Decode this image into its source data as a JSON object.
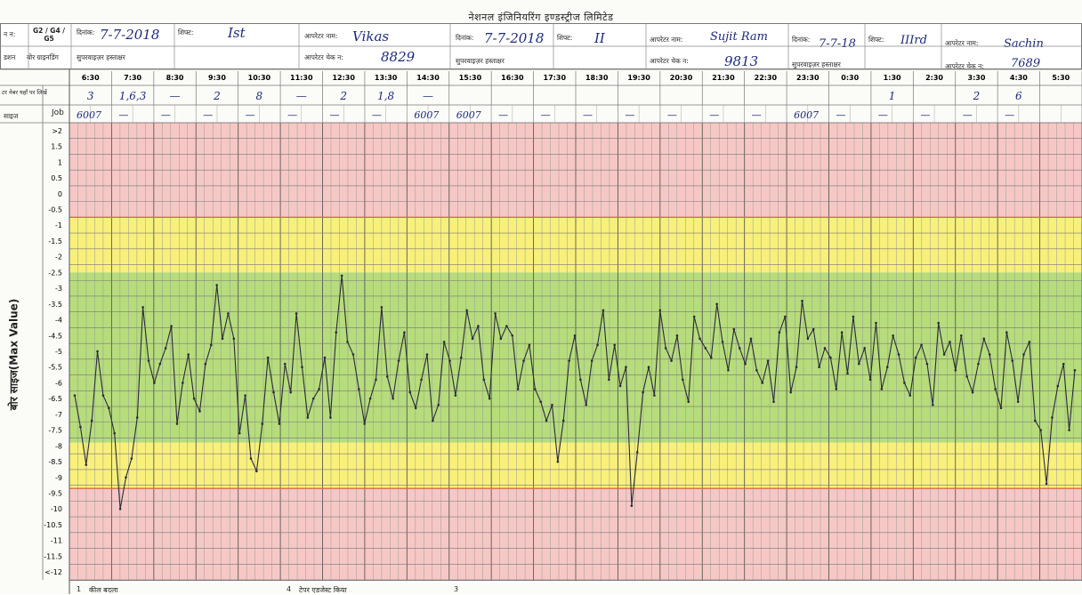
{
  "sheet": {
    "title": "नेशनल इंजिनियरिंग इण्डस्ट्रीज लिमिटेड",
    "left_header": {
      "r1a": "न न:",
      "r1b": "G2 / G4 / G5",
      "r2a": "डशन",
      "r2b": "बोर ग्राइनडिंग"
    },
    "labels": {
      "date": "दिनांक:",
      "shift": "शिफ्ट:",
      "operator_name": "आपरेटर नाम:",
      "operator_check": "आपरेटर चेक न:",
      "supervisor_sign": "सुपरवाइज़र हस्ताक्षर",
      "row_hourly": "टर नेबर यहाँ पर लिखें",
      "row_job_left": "साइज",
      "row_job": "Job",
      "y_axis": "बोर साइज(Max Value)"
    },
    "shifts": [
      {
        "date": "7-7-2018",
        "shift": "Ist",
        "operator": "Vikas",
        "check_no": "8829",
        "supervisor": ""
      },
      {
        "date": "7-7-2018",
        "shift": "II",
        "operator": "Sujit Ram",
        "check_no": "9813",
        "supervisor": ""
      },
      {
        "date": "7-7-18",
        "shift": "IIIrd",
        "operator": "Sachin",
        "check_no": "7689",
        "supervisor": ""
      }
    ],
    "bottom_notes": [
      {
        "num": "1",
        "text": "कील बदला"
      },
      {
        "num": "4",
        "text": "टेपर एडजेस्ट किया"
      },
      {
        "num": "3",
        "text": ""
      },
      {
        "num": "",
        "text": ""
      }
    ]
  },
  "chart_data": {
    "type": "line",
    "title": "",
    "xlabel": "",
    "ylabel": "बोर साइज(Max Value)",
    "x_ticks": [
      "6:30",
      "7:30",
      "8:30",
      "9:30",
      "10:30",
      "11:30",
      "12:30",
      "13:30",
      "14:30",
      "15:30",
      "16:30",
      "17:30",
      "18:30",
      "19:30",
      "20:30",
      "21:30",
      "22:30",
      "23:30",
      "0:30",
      "1:30",
      "2:30",
      "3:30",
      "4:30",
      "5:30"
    ],
    "y_ticks": [
      ">2",
      "1.5",
      "1",
      "0.5",
      "0",
      "-0.5",
      "-1",
      "-1.5",
      "-2",
      "-2.5",
      "-3",
      "-3.5",
      "-4",
      "-4.5",
      "-5",
      "-5.5",
      "-6",
      "-6.5",
      "-7",
      "-7.5",
      "-8",
      "-8.5",
      "-9",
      "-9.5",
      "-10",
      "-10.5",
      "-11",
      "-11.5",
      "<-12"
    ],
    "ylim": [
      -12,
      2
    ],
    "zones": [
      {
        "from": -0.75,
        "to": 2.25,
        "color": "#f6c8c5"
      },
      {
        "from": -2.5,
        "to": -0.75,
        "color": "#f8f07a"
      },
      {
        "from": -7.9,
        "to": -2.5,
        "color": "#b6dc7c"
      },
      {
        "from": -9.35,
        "to": -7.9,
        "color": "#f8f07a"
      },
      {
        "from": -12.25,
        "to": -9.35,
        "color": "#f6c8c5"
      }
    ],
    "hourly_entries": [
      "3",
      "1,6,3",
      "—",
      "2",
      "8",
      "—",
      "2",
      "1,8",
      "—",
      "",
      "",
      "",
      "",
      "",
      "",
      "",
      "",
      "",
      "",
      "1",
      "",
      "2",
      "6",
      ""
    ],
    "job_entries": [
      "6007",
      "—",
      "—",
      "—",
      "—",
      "—",
      "—",
      "—",
      "6007",
      "6007",
      "—",
      "—",
      "—",
      "—",
      "—",
      "—",
      "—",
      "6007",
      "—",
      "—",
      "—",
      "—",
      "—",
      ""
    ],
    "series": [
      {
        "values": [
          -6.4,
          -7.4,
          -8.6,
          -7.2,
          -5,
          -6.4,
          -6.8,
          -7.6,
          -10,
          -9,
          -8.4,
          -7.1,
          -3.6,
          -5.3,
          -6,
          -5.4,
          -4.9,
          -4.2,
          -7.3,
          -6,
          -5.1,
          -6.5,
          -6.9,
          -5.4,
          -4.8,
          -2.9,
          -4.6,
          -3.8,
          -4.6,
          -7.6,
          -6.4,
          -8.4,
          -8.8,
          -7.3,
          -5.2,
          -6.3,
          -7.3,
          -5.4,
          -6.3,
          -3.8,
          -5.5,
          -7.1,
          -6.5,
          -6.2,
          -5.2,
          -7.1,
          -4.4,
          -2.6,
          -4.7,
          -5.1,
          -6.2,
          -7.3,
          -6.5,
          -5.9,
          -3.6,
          -5.8,
          -6.5,
          -5.3,
          -4.4,
          -6.3,
          -6.8,
          -5.9,
          -5.1,
          -7.2,
          -6.7,
          -4.7,
          -5.3,
          -6.4,
          -5.2,
          -3.7,
          -4.6,
          -4.2,
          -5.9,
          -6.5,
          -3.8,
          -4.6,
          -4.2,
          -4.5,
          -6.2,
          -5.3,
          -4.8,
          -6.2,
          -6.6,
          -7.2,
          -6.7,
          -8.5,
          -7.2,
          -5.3,
          -4.5,
          -5.9,
          -6.7,
          -5.3,
          -4.8,
          -3.7,
          -5.9,
          -4.8,
          -6.1,
          -5.5,
          -9.9,
          -8.2,
          -6.3,
          -5.5,
          -6.4,
          -3.7,
          -4.9,
          -5.3,
          -4.5,
          -5.9,
          -6.6,
          -3.9,
          -4.6,
          -4.9,
          -5.2,
          -3.5,
          -4.7,
          -5.6,
          -4.3,
          -4.9,
          -5.4,
          -4.6,
          -5.6,
          -6,
          -5.3,
          -6.6,
          -4.4,
          -3.9,
          -6.3,
          -5.5,
          -3.4,
          -4.6,
          -4.3,
          -5.5,
          -4.9,
          -5.2,
          -6.2,
          -4.4,
          -5.7,
          -3.9,
          -5.4,
          -4.9,
          -5.9,
          -4.1,
          -6.2,
          -5.5,
          -4.5,
          -5.1,
          -6,
          -6.4,
          -5.2,
          -4.8,
          -5.4,
          -6.7,
          -4.1,
          -5.1,
          -4.7,
          -5.6,
          -4.5,
          -5.8,
          -6.3,
          -5.4,
          -4.6,
          -5.1,
          -6.2,
          -6.8,
          -4.4,
          -5.3,
          -6.6,
          -5.1,
          -4.7,
          -7.2,
          -7.5,
          -9.2,
          -7.1,
          -6.1,
          -5.4,
          -7.5,
          -5.6
        ]
      }
    ]
  }
}
